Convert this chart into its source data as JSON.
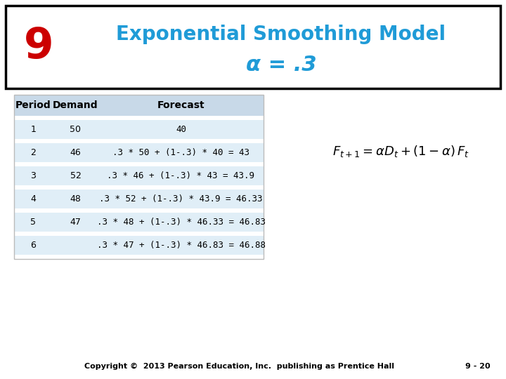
{
  "title_line1": "Exponential Smoothing Model",
  "title_line2": "α = .3",
  "slide_number": "9",
  "title_color": "#1F9BD7",
  "slide_num_color": "#CC0000",
  "bg_color": "#FFFFFF",
  "table_headers": [
    "Period",
    "Demand",
    "Forecast"
  ],
  "table_rows": [
    [
      "1",
      "50",
      "40"
    ],
    [
      "2",
      "46",
      ".3 * 50 + (1-.3) * 40 = 43"
    ],
    [
      "3",
      "52",
      ".3 * 46 + (1-.3) * 43 = 43.9"
    ],
    [
      "4",
      "48",
      ".3 * 52 + (1-.3) * 43.9 = 46.33"
    ],
    [
      "5",
      "47",
      ".3 * 48 + (1-.3) * 46.33 = 46.83"
    ],
    [
      "6",
      "",
      ".3 * 47 + (1-.3) * 46.83 = 46.88"
    ]
  ],
  "header_bg": "#C8D9E8",
  "row_bg_dark": "#C8D9E8",
  "row_bg_light": "#E0EEF7",
  "copyright": "Copyright ©  2013 Pearson Education, Inc.  publishing as Prentice Hall",
  "page_num": "9 - 20",
  "formula": "$F_{t+1} = \\alpha D_t + (1 - \\alpha)\\, F_t$"
}
